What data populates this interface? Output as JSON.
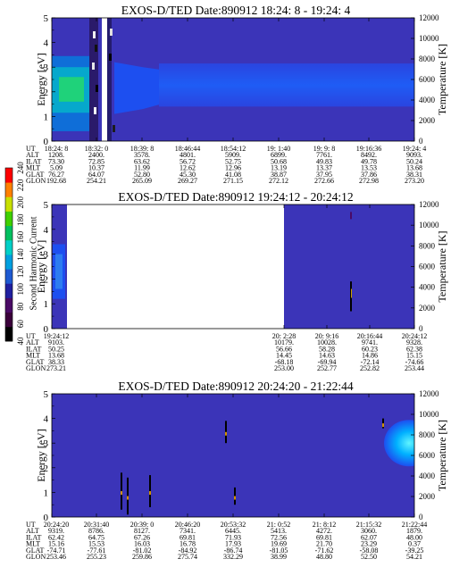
{
  "colorbar": {
    "label": "Second Harmonic Current",
    "ticks": [
      "40",
      "60",
      "80",
      "100",
      "120",
      "140",
      "160",
      "180",
      "200",
      "220",
      "240"
    ],
    "colors": [
      "#000000",
      "#3a003a",
      "#4a0a66",
      "#2020a0",
      "#1e5ad2",
      "#00a0e0",
      "#00d0c8",
      "#00c060",
      "#40d000",
      "#c8e000",
      "#ff8000",
      "#ff0000"
    ]
  },
  "panels": [
    {
      "title": "EXOS-D/TED   Date:890912  18:24: 8 - 19:24: 4",
      "ylabel_left": "Energy [eV]",
      "ylabel_right": "Temperature [K]",
      "yticks_left": [
        "0",
        "1",
        "2",
        "3",
        "4",
        "5"
      ],
      "yticks_right": [
        "0",
        "2000",
        "4000",
        "6000",
        "8000",
        "10000",
        "12000"
      ],
      "orbit_labels": [
        "UT",
        "ALT",
        "ILAT",
        "MLT",
        "GLAT",
        "GLON"
      ],
      "columns": [
        [
          "18:24: 8",
          "1208.",
          "73.30",
          "5.09",
          "76.27",
          "192.68"
        ],
        [
          "18:32: 0",
          "2400.",
          "72.85",
          "10.37",
          "64.07",
          "254.21"
        ],
        [
          "18:39: 8",
          "3578.",
          "63.62",
          "11.99",
          "52.80",
          "265.09"
        ],
        [
          "18:46:44",
          "4801.",
          "56.72",
          "12.62",
          "45.30",
          "269.27"
        ],
        [
          "18:54:12",
          "5909.",
          "52.75",
          "12.96",
          "41.08",
          "271.15"
        ],
        [
          "19: 1:40",
          "6899.",
          "50.68",
          "13.19",
          "38.87",
          "272.12"
        ],
        [
          "19: 9: 8",
          "7761.",
          "49.83",
          "13.37",
          "37.95",
          "272.66"
        ],
        [
          "19:16:36",
          "8492.",
          "49.78",
          "13.53",
          "37.86",
          "272.98"
        ],
        [
          "19:24: 4",
          "9093.",
          "50.24",
          "13.68",
          "38.31",
          "273.20"
        ]
      ]
    },
    {
      "title": "EXOS-D/TED   Date:890912  19:24:12 - 20:24:12",
      "ylabel_left": "Energy [eV]",
      "ylabel_right": "Temperature [K]",
      "yticks_left": [
        "0",
        "1",
        "2",
        "3",
        "4",
        "5"
      ],
      "yticks_right": [
        "0",
        "2000",
        "4000",
        "6000",
        "8000",
        "10000",
        "12000"
      ],
      "orbit_labels": [
        "UT",
        "ALT",
        "ILAT",
        "MLT",
        "GLAT",
        "GLON"
      ],
      "columns": [
        [
          "19:24:12",
          "9103.",
          "50.25",
          "13.68",
          "38.33",
          "273.21"
        ],
        [
          "20: 2:28",
          "10179.",
          "56.66",
          "14.45",
          "-68.18",
          "253.00"
        ],
        [
          "20: 9:16",
          "10028.",
          "58.28",
          "14.63",
          "-69.94",
          "252.77"
        ],
        [
          "20:16:44",
          "9741.",
          "60.23",
          "14.86",
          "-72.14",
          "252.82"
        ],
        [
          "20:24:12",
          "9328.",
          "62.38",
          "15.15",
          "-74.66",
          "253.44"
        ]
      ]
    },
    {
      "title": "EXOS-D/TED   Date:890912  20:24:20 - 21:22:44",
      "ylabel_left": "Energy [eV]",
      "ylabel_right": "Temperature [K]",
      "yticks_left": [
        "0",
        "1",
        "2",
        "3",
        "4",
        "5"
      ],
      "yticks_right": [
        "0",
        "2000",
        "4000",
        "6000",
        "8000",
        "10000",
        "12000"
      ],
      "orbit_labels": [
        "UT",
        "ALT",
        "ILAT",
        "MLT",
        "GLAT",
        "GLON"
      ],
      "columns": [
        [
          "20:24:20",
          "9319.",
          "62.42",
          "15.16",
          "-74.71",
          "253.46"
        ],
        [
          "20:31:40",
          "8786.",
          "64.75",
          "15.53",
          "-77.61",
          "255.23"
        ],
        [
          "20:39: 0",
          "8127.",
          "67.26",
          "16.03",
          "-81.02",
          "259.86"
        ],
        [
          "20:46:20",
          "7341.",
          "69.81",
          "16.78",
          "-84.92",
          "275.74"
        ],
        [
          "20:53:32",
          "6445.",
          "71.93",
          "17.93",
          "-86.74",
          "332.29"
        ],
        [
          "21: 0:52",
          "5413.",
          "72.56",
          "19.69",
          "-81.05",
          "38.99"
        ],
        [
          "21: 8:12",
          "4272.",
          "69.81",
          "21.70",
          "-71.62",
          "48.80"
        ],
        [
          "21:15:32",
          "3060.",
          "62.07",
          "23.29",
          "-58.08",
          "52.50"
        ],
        [
          "21:22:44",
          "1879.",
          "48.00",
          "0.37",
          "-39.25",
          "54.21"
        ]
      ]
    }
  ],
  "chart_data": [
    {
      "type": "heatmap",
      "title": "EXOS-D/TED   Date:890912  18:24: 8 - 19:24: 4",
      "xlabel": "UT",
      "ylabel": "Energy [eV]",
      "ylabel_right": "Temperature [K]",
      "ylim": [
        0,
        5
      ],
      "ylim_right": [
        0,
        12000
      ],
      "x_ticks": [
        "18:24: 8",
        "18:32: 0",
        "18:39: 8",
        "18:46:44",
        "18:54:12",
        "19: 1:40",
        "19: 9: 8",
        "19:16:36",
        "19:24: 4"
      ],
      "colorbar_range": [
        40,
        240
      ],
      "colorbar_label": "Second Harmonic Current"
    },
    {
      "type": "heatmap",
      "title": "EXOS-D/TED   Date:890912  19:24:12 - 20:24:12",
      "xlabel": "UT",
      "ylabel": "Energy [eV]",
      "ylabel_right": "Temperature [K]",
      "ylim": [
        0,
        5
      ],
      "ylim_right": [
        0,
        12000
      ],
      "x_ticks": [
        "19:24:12",
        "20: 2:28",
        "20: 9:16",
        "20:16:44",
        "20:24:12"
      ],
      "colorbar_range": [
        40,
        240
      ],
      "colorbar_label": "Second Harmonic Current"
    },
    {
      "type": "heatmap",
      "title": "EXOS-D/TED   Date:890912  20:24:20 - 21:22:44",
      "xlabel": "UT",
      "ylabel": "Energy [eV]",
      "ylabel_right": "Temperature [K]",
      "ylim": [
        0,
        5
      ],
      "ylim_right": [
        0,
        12000
      ],
      "x_ticks": [
        "20:24:20",
        "20:31:40",
        "20:39: 0",
        "20:46:20",
        "20:53:32",
        "21: 0:52",
        "21: 8:12",
        "21:15:32",
        "21:22:44"
      ],
      "colorbar_range": [
        40,
        240
      ],
      "colorbar_label": "Second Harmonic Current"
    }
  ]
}
